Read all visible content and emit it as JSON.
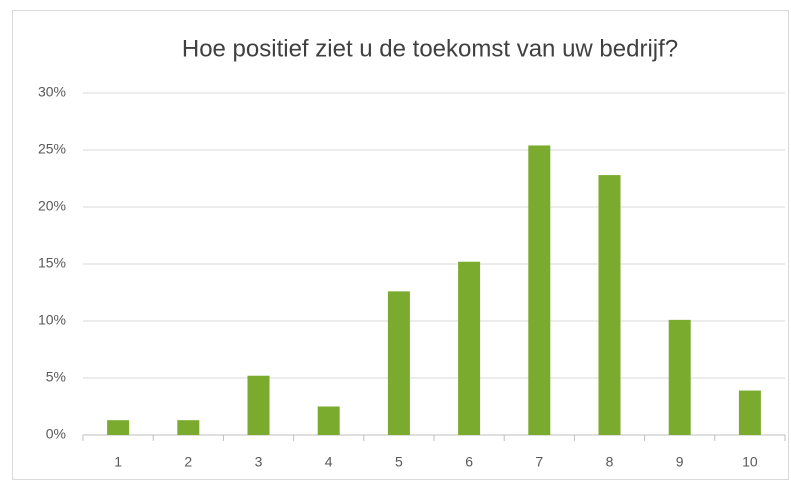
{
  "chart_data": {
    "type": "bar",
    "title": "Hoe positief ziet u de toekomst van uw bedrijf?",
    "categories": [
      "1",
      "2",
      "3",
      "4",
      "5",
      "6",
      "7",
      "8",
      "9",
      "10"
    ],
    "values": [
      1.3,
      1.3,
      5.2,
      2.5,
      12.6,
      15.2,
      25.4,
      22.8,
      10.1,
      3.9
    ],
    "color": "#7aab2f",
    "ylim": [
      0,
      30
    ],
    "yticks": [
      {
        "value": 0,
        "label": "0%"
      },
      {
        "value": 5,
        "label": "5%"
      },
      {
        "value": 10,
        "label": "10%"
      },
      {
        "value": 15,
        "label": "15%"
      },
      {
        "value": 20,
        "label": "20%"
      },
      {
        "value": 25,
        "label": "25%"
      },
      {
        "value": 30,
        "label": "30%"
      }
    ],
    "grid": true
  }
}
